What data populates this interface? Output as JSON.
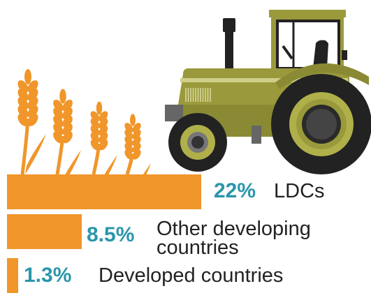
{
  "colors": {
    "bar": "#f0962a",
    "percent_text": "#2a96ab",
    "label_text": "#222222",
    "wheat": "#f0962a",
    "tractor_body": "#9a9a3c",
    "tractor_dark": "#222222",
    "tractor_hub": "#b0b04a",
    "tractor_grey": "#666666"
  },
  "icons": [
    "wheat-stalks-icon",
    "tractor-icon"
  ],
  "chart_data": {
    "type": "bar",
    "orientation": "horizontal",
    "categories": [
      "LDCs",
      "Other developing countries",
      "Developed countries"
    ],
    "values": [
      22,
      8.5,
      1.3
    ],
    "value_labels": [
      "22%",
      "8.5%",
      "1.3%"
    ],
    "label_lines": [
      [
        "LDCs"
      ],
      [
        "Other developing",
        "countries"
      ],
      [
        "Developed countries"
      ]
    ],
    "unit": "%"
  }
}
